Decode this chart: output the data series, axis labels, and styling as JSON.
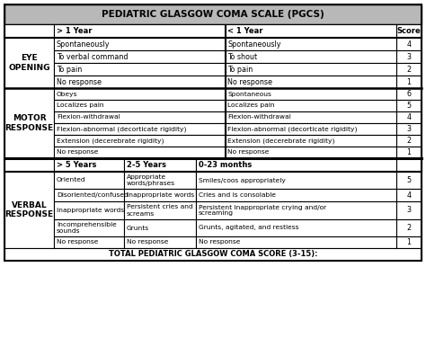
{
  "title": "PEDIATRIC GLASGOW COMA SCALE (PGCS)",
  "footer": "TOTAL PEDIATRIC GLASGOW COMA SCORE (3-15):",
  "title_bg": "#b8b8b8",
  "white_bg": "#ffffff",
  "eye_opening_label": "EYE\nOPENING",
  "motor_response_label": "MOTOR\nRESPONSE",
  "verbal_response_label": "VERBAL\nRESPONSE",
  "col_header_gt1": "> 1 Year",
  "col_header_lt1": "< 1 Year",
  "col_header_score": "Score",
  "col_header_gt5": "> 5 Years",
  "col_header_25": "2-5 Years",
  "col_header_023": "0-23 months",
  "eye_rows": [
    {
      "gt1": "Spontaneously",
      "lt1": "Spontaneously",
      "score": "4"
    },
    {
      "gt1": "To verbal command",
      "lt1": "To shout",
      "score": "3"
    },
    {
      "gt1": "To pain",
      "lt1": "To pain",
      "score": "2"
    },
    {
      "gt1": "No response",
      "lt1": "No response",
      "score": "1"
    }
  ],
  "motor_rows": [
    {
      "gt1": "Obeys",
      "lt1": "Spontaneous",
      "score": "6"
    },
    {
      "gt1": "Localizes pain",
      "lt1": "Localizes pain",
      "score": "5"
    },
    {
      "gt1": "Flexion-withdrawal",
      "lt1": "Flexion-withdrawal",
      "score": "4"
    },
    {
      "gt1": "Flexion-abnormal (decorticate rigidity)",
      "lt1": "Flexion-abnormal (decorticate rigidity)",
      "score": "3"
    },
    {
      "gt1": "Extension (decerebrate rigidity)",
      "lt1": "Extension (decerebrate rigidity)",
      "score": "2"
    },
    {
      "gt1": "No response",
      "lt1": "No response",
      "score": "1"
    }
  ],
  "verbal_rows": [
    {
      "gt5": "Oriented",
      "y25": "Appropriate\nwords/phrases",
      "m023": "Smiles/coos appropriately",
      "score": "5"
    },
    {
      "gt5": "Disoriented/confused",
      "y25": "Inappropriate words",
      "m023": "Cries and is consolable",
      "score": "4"
    },
    {
      "gt5": "Inappropriate words",
      "y25": "Persistent cries and\nscreams",
      "m023": "Persistent inappropriate crying and/or\nscreaming",
      "score": "3"
    },
    {
      "gt5": "Incomprehensible\nsounds",
      "y25": "Grunts",
      "m023": "Grunts, agitated, and restless",
      "score": "2"
    },
    {
      "gt5": "No response",
      "y25": "No response",
      "m023": "No response",
      "score": "1"
    }
  ],
  "fig_w": 4.74,
  "fig_h": 3.86,
  "dpi": 100
}
